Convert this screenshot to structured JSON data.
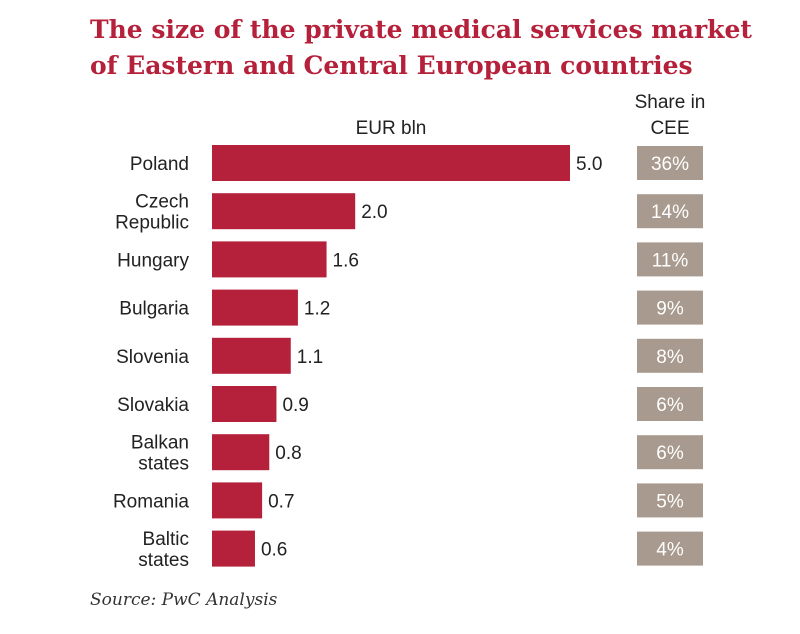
{
  "title_line1": "The size of the private medical services market",
  "title_line2": "of Eastern and Central European countries",
  "source": "Source: PwC Analysis",
  "colors": {
    "bar": "#b5203a",
    "share_box": "#a89a8e",
    "share_text": "#ffffff",
    "title": "#b5203a"
  },
  "chart_data": {
    "type": "bar",
    "orientation": "horizontal",
    "title": "The size of the private medical services market of Eastern and Central European countries",
    "xlabel": "EUR bln",
    "share_header": [
      "Share in",
      "CEE"
    ],
    "categories": [
      [
        "Poland"
      ],
      [
        "Czech",
        "Republic"
      ],
      [
        "Hungary"
      ],
      [
        "Bulgaria"
      ],
      [
        "Slovenia"
      ],
      [
        "Slovakia"
      ],
      [
        "Balkan",
        "states"
      ],
      [
        "Romania"
      ],
      [
        "Baltic",
        "states"
      ]
    ],
    "values": [
      5.0,
      2.0,
      1.6,
      1.2,
      1.1,
      0.9,
      0.8,
      0.7,
      0.6
    ],
    "value_labels": [
      "5.0",
      "2.0",
      "1.6",
      "1.2",
      "1.1",
      "0.9",
      "0.8",
      "0.7",
      "0.6"
    ],
    "shares": [
      "36%",
      "14%",
      "11%",
      "9%",
      "8%",
      "6%",
      "6%",
      "5%",
      "4%"
    ],
    "xlim": [
      0,
      5.0
    ],
    "grid": false,
    "legend": "none"
  }
}
